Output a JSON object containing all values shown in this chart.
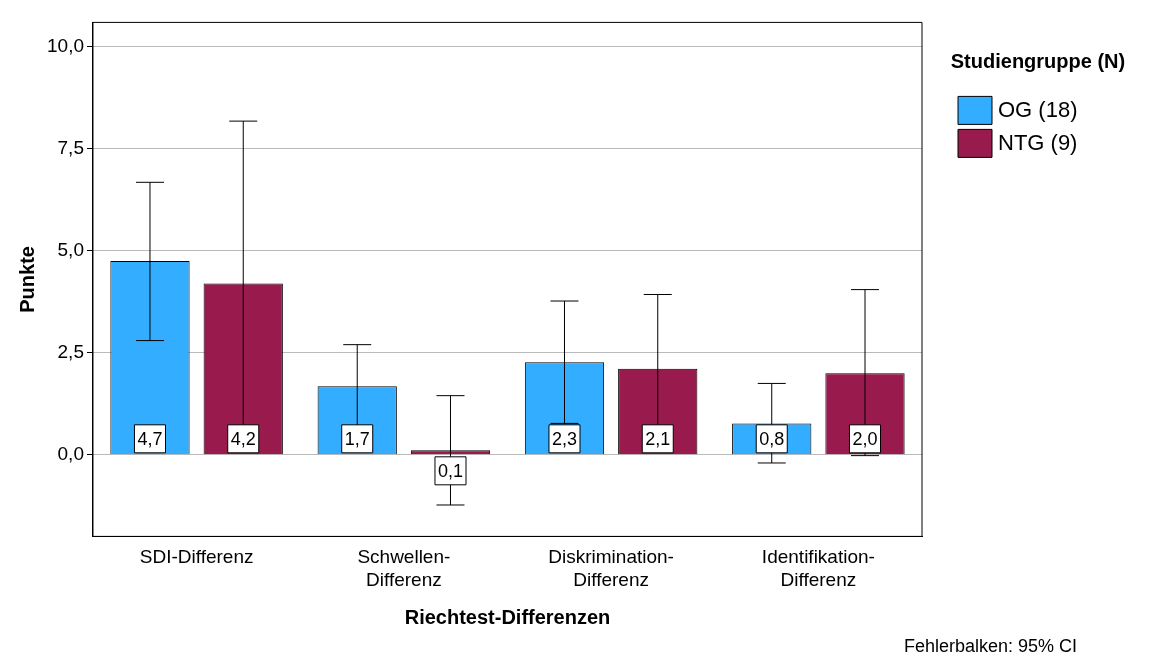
{
  "chart_data": {
    "type": "bar",
    "xlabel": "Riechtest-Differenzen",
    "ylabel": "Punkte",
    "legend_title": "Studiengruppe (N)",
    "categories": [
      "SDI-Differenz",
      "Schwellen-Differenz",
      "Diskrimination-Differenz",
      "Identifikation-Differenz"
    ],
    "series": [
      {
        "name": "OG (18)",
        "color": "#33adff",
        "values": [
          4.75,
          1.68,
          2.27,
          0.77
        ],
        "errors": [
          [
            2.8,
            6.68
          ],
          [
            0.68,
            2.7
          ],
          [
            0.77,
            3.77
          ],
          [
            -0.2,
            1.75
          ]
        ],
        "value_labels": [
          "4,7",
          "1,7",
          "2,3",
          "0,8"
        ]
      },
      {
        "name": "NTG (9)",
        "color": "#991a4d",
        "values": [
          4.2,
          0.11,
          2.11,
          2.0
        ],
        "errors": [
          [
            0.25,
            8.18
          ],
          [
            -1.23,
            1.45
          ],
          [
            0.27,
            3.93
          ],
          [
            -0.02,
            4.05
          ]
        ],
        "value_labels": [
          "4,2",
          "0,1",
          "2,1",
          "2,0"
        ]
      }
    ],
    "ylim": [
      -2,
      10.6
    ],
    "yticks": [
      {
        "value": 0,
        "label": "0,0"
      },
      {
        "value": 2.5,
        "label": "2,5"
      },
      {
        "value": 5,
        "label": "5,0"
      },
      {
        "value": 7.5,
        "label": "7,5"
      },
      {
        "value": 10,
        "label": "10,0"
      }
    ],
    "grid": "y",
    "legend": "top right",
    "annotations": [
      "Fehlerbalken: 95% CI"
    ]
  }
}
